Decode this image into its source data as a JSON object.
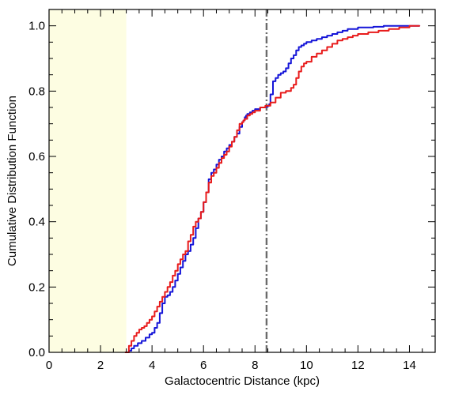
{
  "chart_data": {
    "type": "line",
    "title": "",
    "xlabel": "Galactocentric Distance (kpc)",
    "ylabel": "Cumulative Distribution Function",
    "xlim": [
      0,
      15
    ],
    "ylim": [
      0,
      1.05
    ],
    "xticks": [
      "0",
      "2",
      "4",
      "6",
      "8",
      "10",
      "12",
      "14"
    ],
    "xtick_values": [
      0,
      2,
      4,
      6,
      8,
      10,
      12,
      14
    ],
    "yticks": [
      "0.0",
      "0.2",
      "0.4",
      "0.6",
      "0.8",
      "1.0"
    ],
    "ytick_values": [
      0,
      0.2,
      0.4,
      0.6,
      0.8,
      1.0
    ],
    "minor_xtick_step": 0.5,
    "minor_ytick_step": 0.05,
    "shaded_region": {
      "x": [
        0,
        3
      ],
      "color": "#fdfde2"
    },
    "vline": {
      "x": 8.45,
      "style": "dash-dot",
      "color": "#6b6b6b"
    },
    "grid": false,
    "series": [
      {
        "color": "#1515d8",
        "x": [
          2.95,
          3.1,
          3.2,
          3.3,
          3.45,
          3.6,
          3.75,
          3.9,
          4.0,
          4.1,
          4.2,
          4.3,
          4.4,
          4.5,
          4.6,
          4.7,
          4.8,
          4.9,
          5.0,
          5.1,
          5.2,
          5.3,
          5.4,
          5.5,
          5.6,
          5.7,
          5.8,
          5.9,
          6.0,
          6.1,
          6.2,
          6.3,
          6.4,
          6.5,
          6.6,
          6.7,
          6.8,
          6.9,
          7.0,
          7.1,
          7.2,
          7.3,
          7.4,
          7.5,
          7.55,
          7.6,
          7.65,
          7.7,
          7.8,
          7.9,
          8.0,
          8.1,
          8.2,
          8.3,
          8.4,
          8.5,
          8.55,
          8.6,
          8.7,
          8.8,
          8.9,
          9.0,
          9.1,
          9.2,
          9.3,
          9.4,
          9.5,
          9.6,
          9.7,
          9.8,
          9.9,
          10.0,
          10.2,
          10.4,
          10.6,
          10.8,
          11.0,
          11.2,
          11.4,
          11.6,
          11.8,
          12.0,
          12.3,
          12.6,
          13.0,
          13.3,
          13.6,
          14.0,
          14.4
        ],
        "values": [
          0.0,
          0.005,
          0.012,
          0.02,
          0.028,
          0.035,
          0.045,
          0.055,
          0.06,
          0.075,
          0.09,
          0.12,
          0.15,
          0.17,
          0.175,
          0.185,
          0.2,
          0.22,
          0.24,
          0.26,
          0.28,
          0.3,
          0.31,
          0.33,
          0.35,
          0.38,
          0.41,
          0.43,
          0.46,
          0.49,
          0.53,
          0.55,
          0.56,
          0.575,
          0.59,
          0.6,
          0.615,
          0.625,
          0.635,
          0.645,
          0.66,
          0.67,
          0.69,
          0.705,
          0.71,
          0.72,
          0.725,
          0.73,
          0.735,
          0.74,
          0.745,
          0.745,
          0.75,
          0.75,
          0.752,
          0.755,
          0.76,
          0.79,
          0.83,
          0.84,
          0.85,
          0.855,
          0.86,
          0.87,
          0.885,
          0.9,
          0.91,
          0.925,
          0.935,
          0.94,
          0.945,
          0.95,
          0.955,
          0.96,
          0.965,
          0.97,
          0.975,
          0.98,
          0.985,
          0.99,
          0.99,
          0.995,
          0.995,
          0.997,
          1.0,
          1.0,
          1.0,
          1.0,
          1.0
        ]
      },
      {
        "color": "#e81b1b",
        "x": [
          2.95,
          3.1,
          3.2,
          3.3,
          3.4,
          3.5,
          3.6,
          3.7,
          3.8,
          3.9,
          4.0,
          4.1,
          4.2,
          4.3,
          4.4,
          4.5,
          4.6,
          4.7,
          4.8,
          4.9,
          5.0,
          5.1,
          5.2,
          5.3,
          5.4,
          5.5,
          5.6,
          5.7,
          5.8,
          5.9,
          6.0,
          6.1,
          6.2,
          6.3,
          6.4,
          6.5,
          6.6,
          6.7,
          6.8,
          6.9,
          7.0,
          7.1,
          7.2,
          7.3,
          7.4,
          7.5,
          7.55,
          7.6,
          7.7,
          7.8,
          7.9,
          8.0,
          8.2,
          8.4,
          8.6,
          8.8,
          9.0,
          9.2,
          9.4,
          9.5,
          9.6,
          9.7,
          9.8,
          9.9,
          10.0,
          10.2,
          10.4,
          10.6,
          10.8,
          11.0,
          11.2,
          11.4,
          11.6,
          11.8,
          12.0,
          12.4,
          12.8,
          13.2,
          13.6,
          14.0,
          14.4
        ],
        "values": [
          0.0,
          0.02,
          0.035,
          0.05,
          0.06,
          0.07,
          0.075,
          0.08,
          0.09,
          0.1,
          0.11,
          0.125,
          0.14,
          0.155,
          0.17,
          0.185,
          0.2,
          0.215,
          0.235,
          0.25,
          0.27,
          0.285,
          0.3,
          0.31,
          0.34,
          0.36,
          0.385,
          0.4,
          0.41,
          0.43,
          0.46,
          0.49,
          0.52,
          0.54,
          0.55,
          0.565,
          0.58,
          0.595,
          0.605,
          0.615,
          0.63,
          0.645,
          0.66,
          0.68,
          0.7,
          0.705,
          0.71,
          0.715,
          0.725,
          0.73,
          0.735,
          0.74,
          0.75,
          0.755,
          0.765,
          0.78,
          0.795,
          0.8,
          0.81,
          0.82,
          0.84,
          0.86,
          0.875,
          0.885,
          0.89,
          0.905,
          0.915,
          0.925,
          0.935,
          0.945,
          0.955,
          0.96,
          0.965,
          0.97,
          0.975,
          0.98,
          0.985,
          0.99,
          0.995,
          1.0,
          1.0
        ]
      }
    ]
  }
}
